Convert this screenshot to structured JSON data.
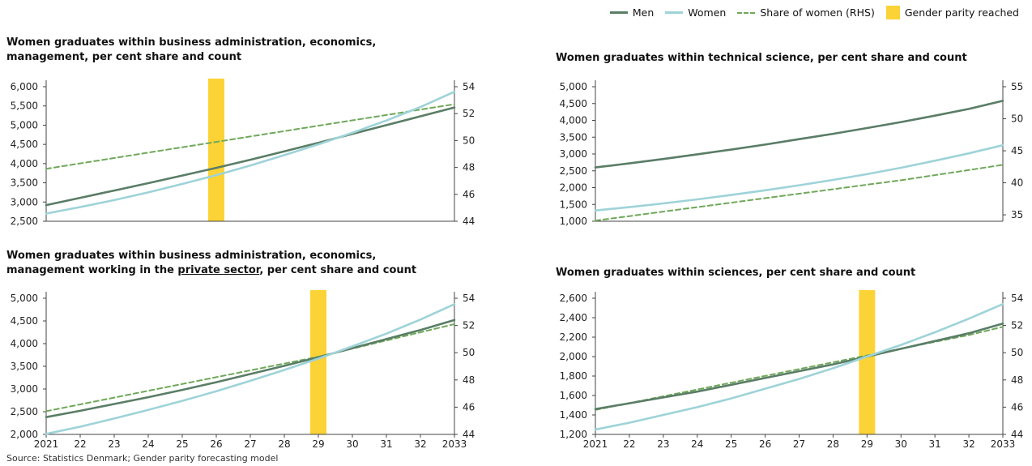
{
  "legend": {
    "men": "Men",
    "women": "Women",
    "share": "Share of women (RHS)",
    "parity": "Gender parity reached"
  },
  "colors": {
    "men": "#5a7d66",
    "women": "#9ed3d8",
    "share": "#6fa85a",
    "parity": "#fcd336",
    "axis": "#444444"
  },
  "titles": {
    "c1": "Women graduates within business administration, economics, management, per cent share and count",
    "c2_line1": "Women graduates within business administration, economics,",
    "c2_line2_pre": "management working in the ",
    "c2_line2_u": "private sector",
    "c2_line2_post": ", per cent share and count",
    "c3": "Women graduates within technical science, per cent share and count",
    "c4": "Women graduates within sciences, per cent share and count"
  },
  "source": "Source: Statistics Denmark; Gender parity forecasting model",
  "chart_data": [
    {
      "type": "line",
      "title": "Women graduates within business administration, economics, management, per cent share and count",
      "x": [
        2021,
        2022,
        2023,
        2024,
        2025,
        2026,
        2027,
        2028,
        2029,
        2030,
        2031,
        2032,
        2033
      ],
      "xticks": [],
      "series": [
        {
          "name": "Men",
          "axis": "left",
          "values": [
            2920,
            3110,
            3300,
            3490,
            3690,
            3890,
            4100,
            4320,
            4540,
            4770,
            5000,
            5230,
            5460
          ]
        },
        {
          "name": "Women",
          "axis": "left",
          "values": [
            2700,
            2870,
            3050,
            3250,
            3470,
            3700,
            3950,
            4220,
            4500,
            4800,
            5120,
            5470,
            5870
          ]
        },
        {
          "name": "Share of women (RHS)",
          "axis": "right",
          "values": [
            47.9,
            48.3,
            48.7,
            49.1,
            49.5,
            49.9,
            50.3,
            50.7,
            51.1,
            51.5,
            51.9,
            52.3,
            52.7
          ]
        }
      ],
      "parity_year": 2026,
      "yleft": {
        "min": 2500,
        "max": 6000,
        "ticks": [
          "2,500",
          "3,000",
          "3,500",
          "4,000",
          "4,500",
          "5,000",
          "5,500",
          "6,000"
        ]
      },
      "yright": {
        "min": 44,
        "max": 54,
        "ticks": [
          "44",
          "46",
          "48",
          "50",
          "52",
          "54"
        ]
      }
    },
    {
      "type": "line",
      "title": "Women graduates within business administration, economics, management working in the private sector, per cent share and count",
      "x": [
        2021,
        2022,
        2023,
        2024,
        2025,
        2026,
        2027,
        2028,
        2029,
        2030,
        2031,
        2032,
        2033
      ],
      "xticks": [
        "2021",
        "22",
        "23",
        "24",
        "25",
        "26",
        "27",
        "28",
        "29",
        "30",
        "31",
        "32",
        "2033"
      ],
      "series": [
        {
          "name": "Men",
          "axis": "left",
          "values": [
            2380,
            2520,
            2670,
            2820,
            2980,
            3150,
            3330,
            3510,
            3700,
            3900,
            4100,
            4300,
            4520
          ]
        },
        {
          "name": "Women",
          "axis": "left",
          "values": [
            2010,
            2170,
            2350,
            2540,
            2740,
            2950,
            3180,
            3420,
            3670,
            3940,
            4220,
            4530,
            4870
          ]
        },
        {
          "name": "Share of women (RHS)",
          "axis": "right",
          "values": [
            45.7,
            46.2,
            46.7,
            47.2,
            47.7,
            48.2,
            48.7,
            49.2,
            49.7,
            50.3,
            50.9,
            51.5,
            52.1
          ]
        }
      ],
      "parity_year": 2029,
      "yleft": {
        "min": 2000,
        "max": 5000,
        "ticks": [
          "2,000",
          "2,500",
          "3,000",
          "3,500",
          "4,000",
          "4,500",
          "5,000"
        ]
      },
      "yright": {
        "min": 44,
        "max": 54,
        "ticks": [
          "44",
          "46",
          "48",
          "50",
          "52",
          "54"
        ]
      }
    },
    {
      "type": "line",
      "title": "Women graduates within technical science, per cent share and count",
      "x": [
        2021,
        2022,
        2023,
        2024,
        2025,
        2026,
        2027,
        2028,
        2029,
        2030,
        2031,
        2032,
        2033
      ],
      "xticks": [],
      "series": [
        {
          "name": "Men",
          "axis": "left",
          "values": [
            2600,
            2720,
            2850,
            2990,
            3130,
            3280,
            3440,
            3600,
            3770,
            3950,
            4140,
            4340,
            4580
          ]
        },
        {
          "name": "Women",
          "axis": "left",
          "values": [
            1320,
            1420,
            1530,
            1650,
            1780,
            1920,
            2070,
            2230,
            2400,
            2590,
            2800,
            3020,
            3260
          ]
        },
        {
          "name": "Share of women (RHS)",
          "axis": "right",
          "values": [
            34.1,
            34.8,
            35.5,
            36.2,
            36.9,
            37.6,
            38.3,
            39.0,
            39.7,
            40.4,
            41.2,
            42.0,
            42.8
          ]
        }
      ],
      "parity_year": null,
      "yleft": {
        "min": 1000,
        "max": 5000,
        "ticks": [
          "1,000",
          "1,500",
          "2,000",
          "2,500",
          "3,000",
          "3,500",
          "4,000",
          "4,500",
          "5,000"
        ]
      },
      "yright": {
        "min": 34,
        "max": 55,
        "ticks": [
          "35",
          "40",
          "45",
          "50",
          "55"
        ]
      }
    },
    {
      "type": "line",
      "title": "Women graduates within sciences, per cent share and count",
      "x": [
        2021,
        2022,
        2023,
        2024,
        2025,
        2026,
        2027,
        2028,
        2029,
        2030,
        2031,
        2032,
        2033
      ],
      "xticks": [
        "2021",
        "22",
        "23",
        "24",
        "25",
        "26",
        "27",
        "28",
        "29",
        "30",
        "31",
        "32",
        "2033"
      ],
      "series": [
        {
          "name": "Men",
          "axis": "left",
          "values": [
            1460,
            1520,
            1580,
            1640,
            1710,
            1780,
            1850,
            1920,
            2000,
            2080,
            2160,
            2240,
            2340
          ]
        },
        {
          "name": "Women",
          "axis": "left",
          "values": [
            1250,
            1320,
            1400,
            1480,
            1570,
            1670,
            1770,
            1880,
            2000,
            2120,
            2250,
            2390,
            2540
          ]
        },
        {
          "name": "Share of women (RHS)",
          "axis": "right",
          "values": [
            45.8,
            46.3,
            46.8,
            47.3,
            47.8,
            48.3,
            48.8,
            49.3,
            49.8,
            50.3,
            50.8,
            51.3,
            51.9
          ]
        }
      ],
      "parity_year": 2029,
      "yleft": {
        "min": 1200,
        "max": 2600,
        "ticks": [
          "1,200",
          "1,400",
          "1,600",
          "1,800",
          "2,000",
          "2,200",
          "2,400",
          "2,600"
        ]
      },
      "yright": {
        "min": 44,
        "max": 54,
        "ticks": [
          "44",
          "46",
          "48",
          "50",
          "52",
          "54"
        ]
      }
    }
  ]
}
